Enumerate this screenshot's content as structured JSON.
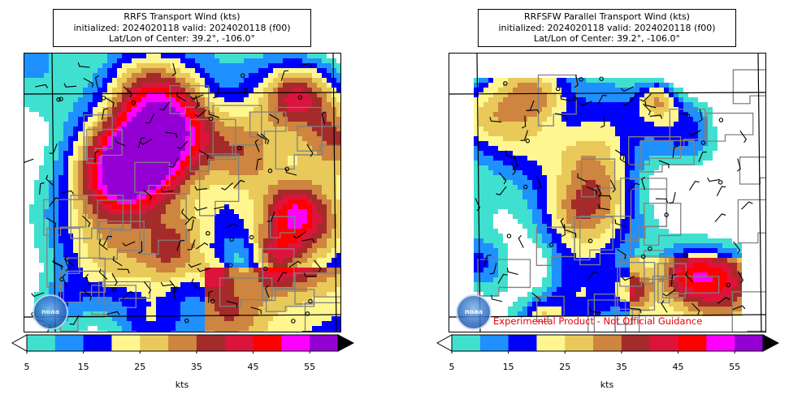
{
  "panels": [
    {
      "title": [
        "RRFS Transport Wind (kts)",
        "initialized: 2024020118 valid: 2024020118 (f00)",
        "Lat/Lon of Center: 39.2°, -106.0°"
      ],
      "colorbar": {
        "ticks": [
          "5",
          "15",
          "25",
          "35",
          "45",
          "55"
        ],
        "units": "kts"
      }
    },
    {
      "title": [
        "RRFSFW Parallel Transport Wind (kts)",
        "initialized: 2024020118 valid: 2024020118 (f00)",
        "Lat/Lon of Center: 39.2°, -106.0°"
      ],
      "colorbar": {
        "ticks": [
          "5",
          "15",
          "25",
          "35",
          "45",
          "55"
        ],
        "units": "kts"
      },
      "watermark": "Experimental Product - Not Official Guidance"
    }
  ],
  "logo_text": "noaa",
  "color_scale": {
    "levels": [
      5,
      10,
      15,
      20,
      25,
      30,
      35,
      40,
      45,
      50,
      55,
      60
    ],
    "colors": [
      "#40e0d0",
      "#1e90ff",
      "#0000ff",
      "#fff68f",
      "#e8c95a",
      "#cd853f",
      "#a52a2a",
      "#dc143c",
      "#ff0000",
      "#ff00ff",
      "#9400d3"
    ],
    "under": "#ffffff",
    "over": "#000000"
  }
}
